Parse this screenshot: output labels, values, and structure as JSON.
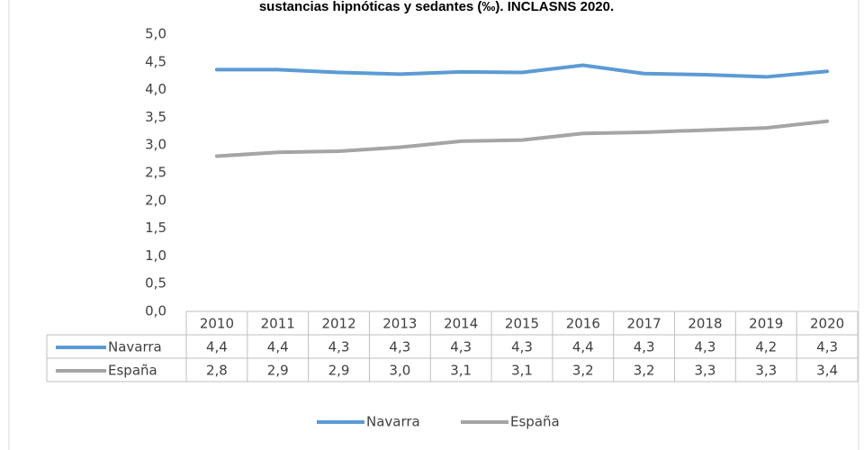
{
  "chart_data": {
    "type": "line",
    "title": "sustancias hipnóticas y sedantes (‰). INCLASNS 2020.",
    "categories": [
      "2010",
      "2011",
      "2012",
      "2013",
      "2014",
      "2015",
      "2016",
      "2017",
      "2018",
      "2019",
      "2020"
    ],
    "series": [
      {
        "name": "Navarra",
        "color": "#5b9bd5",
        "values": [
          4.36,
          4.36,
          4.31,
          4.28,
          4.32,
          4.31,
          4.44,
          4.29,
          4.27,
          4.23,
          4.33
        ],
        "value_labels": [
          "4,4",
          "4,4",
          "4,3",
          "4,3",
          "4,3",
          "4,3",
          "4,4",
          "4,3",
          "4,3",
          "4,2",
          "4,3"
        ]
      },
      {
        "name": "España",
        "color": "#a5a5a5",
        "values": [
          2.8,
          2.87,
          2.89,
          2.96,
          3.07,
          3.09,
          3.21,
          3.23,
          3.27,
          3.31,
          3.43
        ],
        "value_labels": [
          "2,8",
          "2,9",
          "2,9",
          "3,0",
          "3,1",
          "3,1",
          "3,2",
          "3,2",
          "3,3",
          "3,3",
          "3,4"
        ]
      }
    ],
    "ylim": [
      0,
      5
    ],
    "yticks": [
      {
        "value": 0,
        "label": "0,0"
      },
      {
        "value": 0.5,
        "label": "0,5"
      },
      {
        "value": 1,
        "label": "1,0"
      },
      {
        "value": 1.5,
        "label": "1,5"
      },
      {
        "value": 2,
        "label": "2,0"
      },
      {
        "value": 2.5,
        "label": "2,5"
      },
      {
        "value": 3,
        "label": "3,0"
      },
      {
        "value": 3.5,
        "label": "3,5"
      },
      {
        "value": 4,
        "label": "4,0"
      },
      {
        "value": 4.5,
        "label": "4,5"
      },
      {
        "value": 5,
        "label": "5,0"
      }
    ],
    "grid": false,
    "legend": "bottom"
  }
}
